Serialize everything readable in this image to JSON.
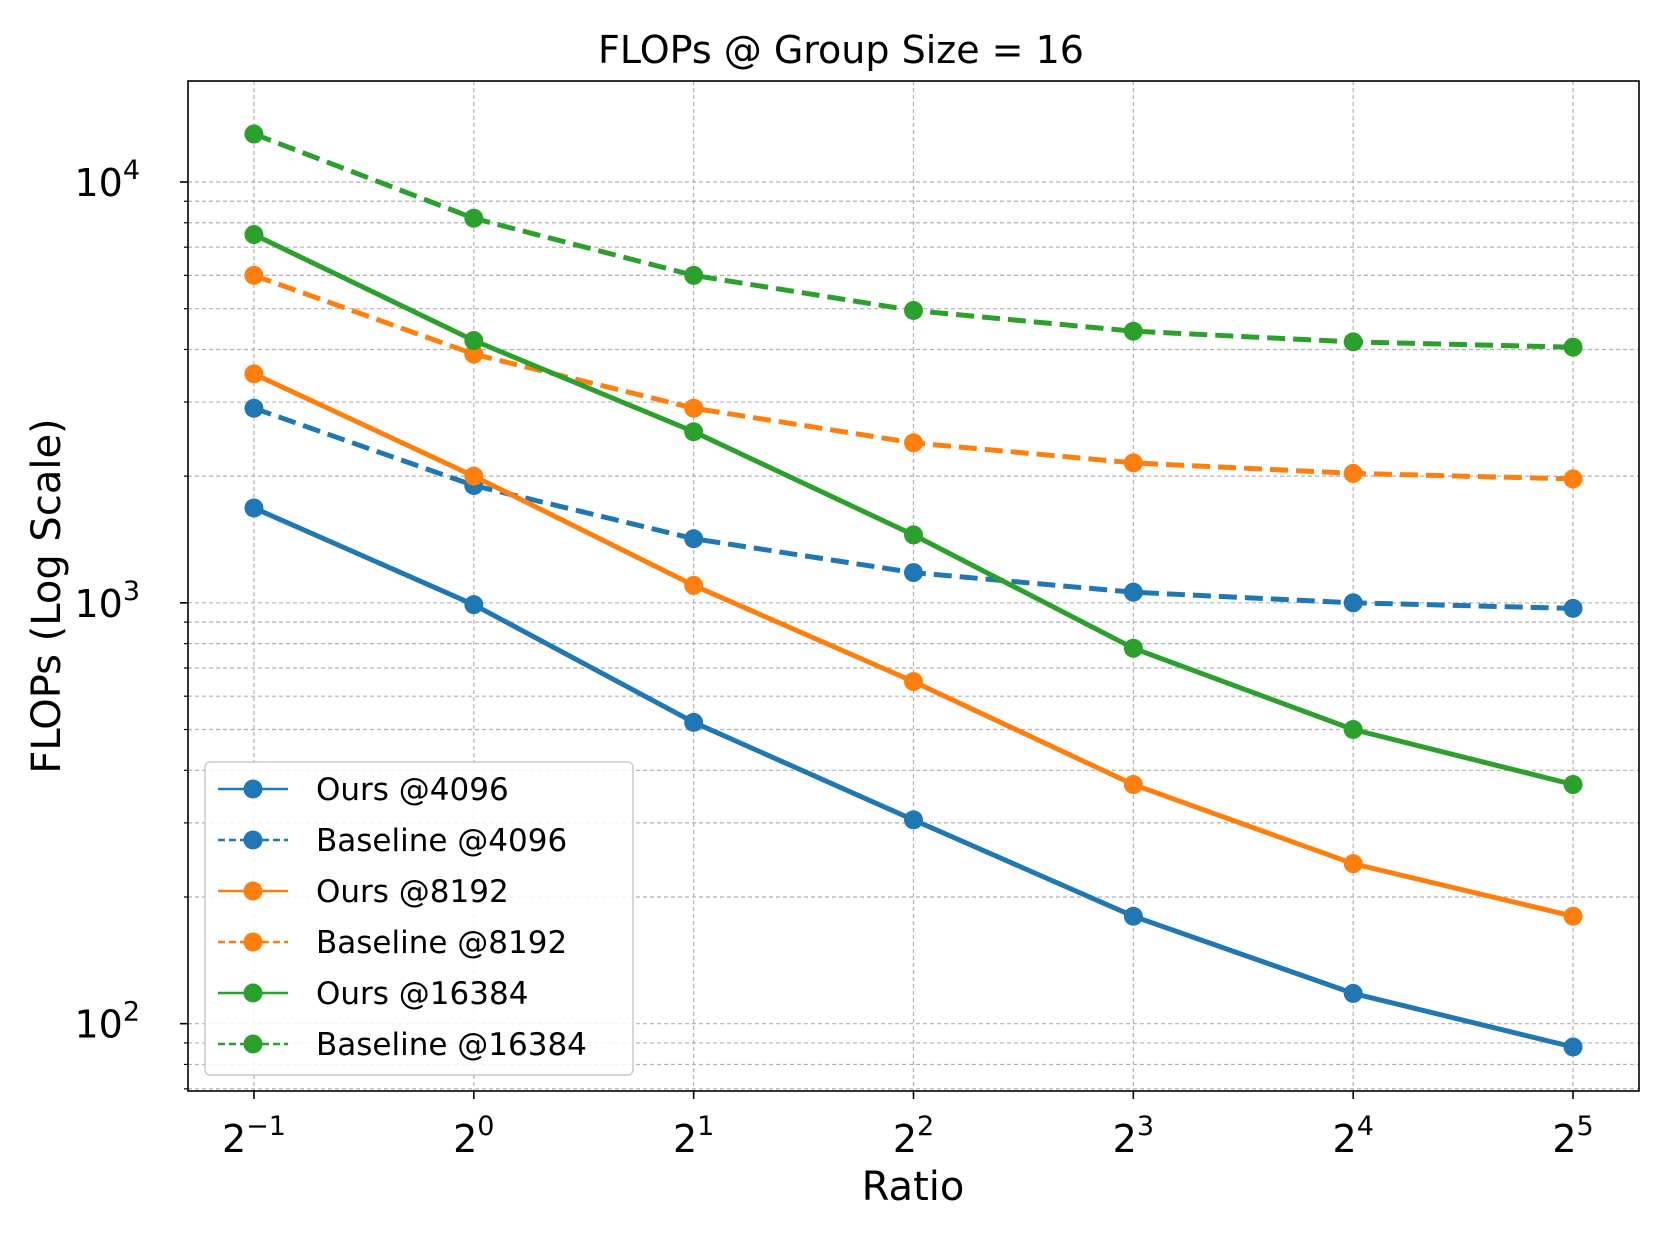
{
  "chart_data": {
    "type": "line",
    "title": "FLOPs @ Group Size = 16",
    "xlabel": "Ratio",
    "ylabel": "FLOPs (Log Scale)",
    "xscale": "log2",
    "yscale": "log10",
    "x": [
      0.5,
      1,
      2,
      4,
      8,
      16,
      32
    ],
    "xlim_log2": [
      -1.3,
      5.3
    ],
    "ylim_log10": [
      1.84,
      4.24
    ],
    "x_ticks": [
      {
        "base": "2",
        "exp": "−1"
      },
      {
        "base": "2",
        "exp": "0"
      },
      {
        "base": "2",
        "exp": "1"
      },
      {
        "base": "2",
        "exp": "2"
      },
      {
        "base": "2",
        "exp": "3"
      },
      {
        "base": "2",
        "exp": "4"
      },
      {
        "base": "2",
        "exp": "5"
      }
    ],
    "y_ticks": [
      {
        "value": 100,
        "base": "10",
        "exp": "2"
      },
      {
        "value": 1000,
        "base": "10",
        "exp": "3"
      },
      {
        "value": 10000,
        "base": "10",
        "exp": "4"
      }
    ],
    "grid": true,
    "legend_position": "lower-left",
    "series": [
      {
        "name": "Ours @4096",
        "color": "#1f77b4",
        "dash": false,
        "values": [
          1680,
          990,
          520,
          305,
          180,
          118,
          88
        ]
      },
      {
        "name": "Baseline @4096",
        "color": "#1f77b4",
        "dash": true,
        "values": [
          2900,
          1900,
          1420,
          1180,
          1060,
          1000,
          970
        ]
      },
      {
        "name": "Ours @8192",
        "color": "#ff7f0e",
        "dash": false,
        "values": [
          3500,
          2000,
          1100,
          650,
          370,
          240,
          180
        ]
      },
      {
        "name": "Baseline @8192",
        "color": "#ff7f0e",
        "dash": true,
        "values": [
          6000,
          3900,
          2900,
          2400,
          2150,
          2030,
          1970
        ]
      },
      {
        "name": "Ours @16384",
        "color": "#2ca02c",
        "dash": false,
        "values": [
          7500,
          4200,
          2550,
          1450,
          780,
          500,
          370
        ]
      },
      {
        "name": "Baseline @16384",
        "color": "#2ca02c",
        "dash": true,
        "values": [
          13000,
          8200,
          6000,
          4950,
          4420,
          4170,
          4050
        ]
      }
    ]
  }
}
